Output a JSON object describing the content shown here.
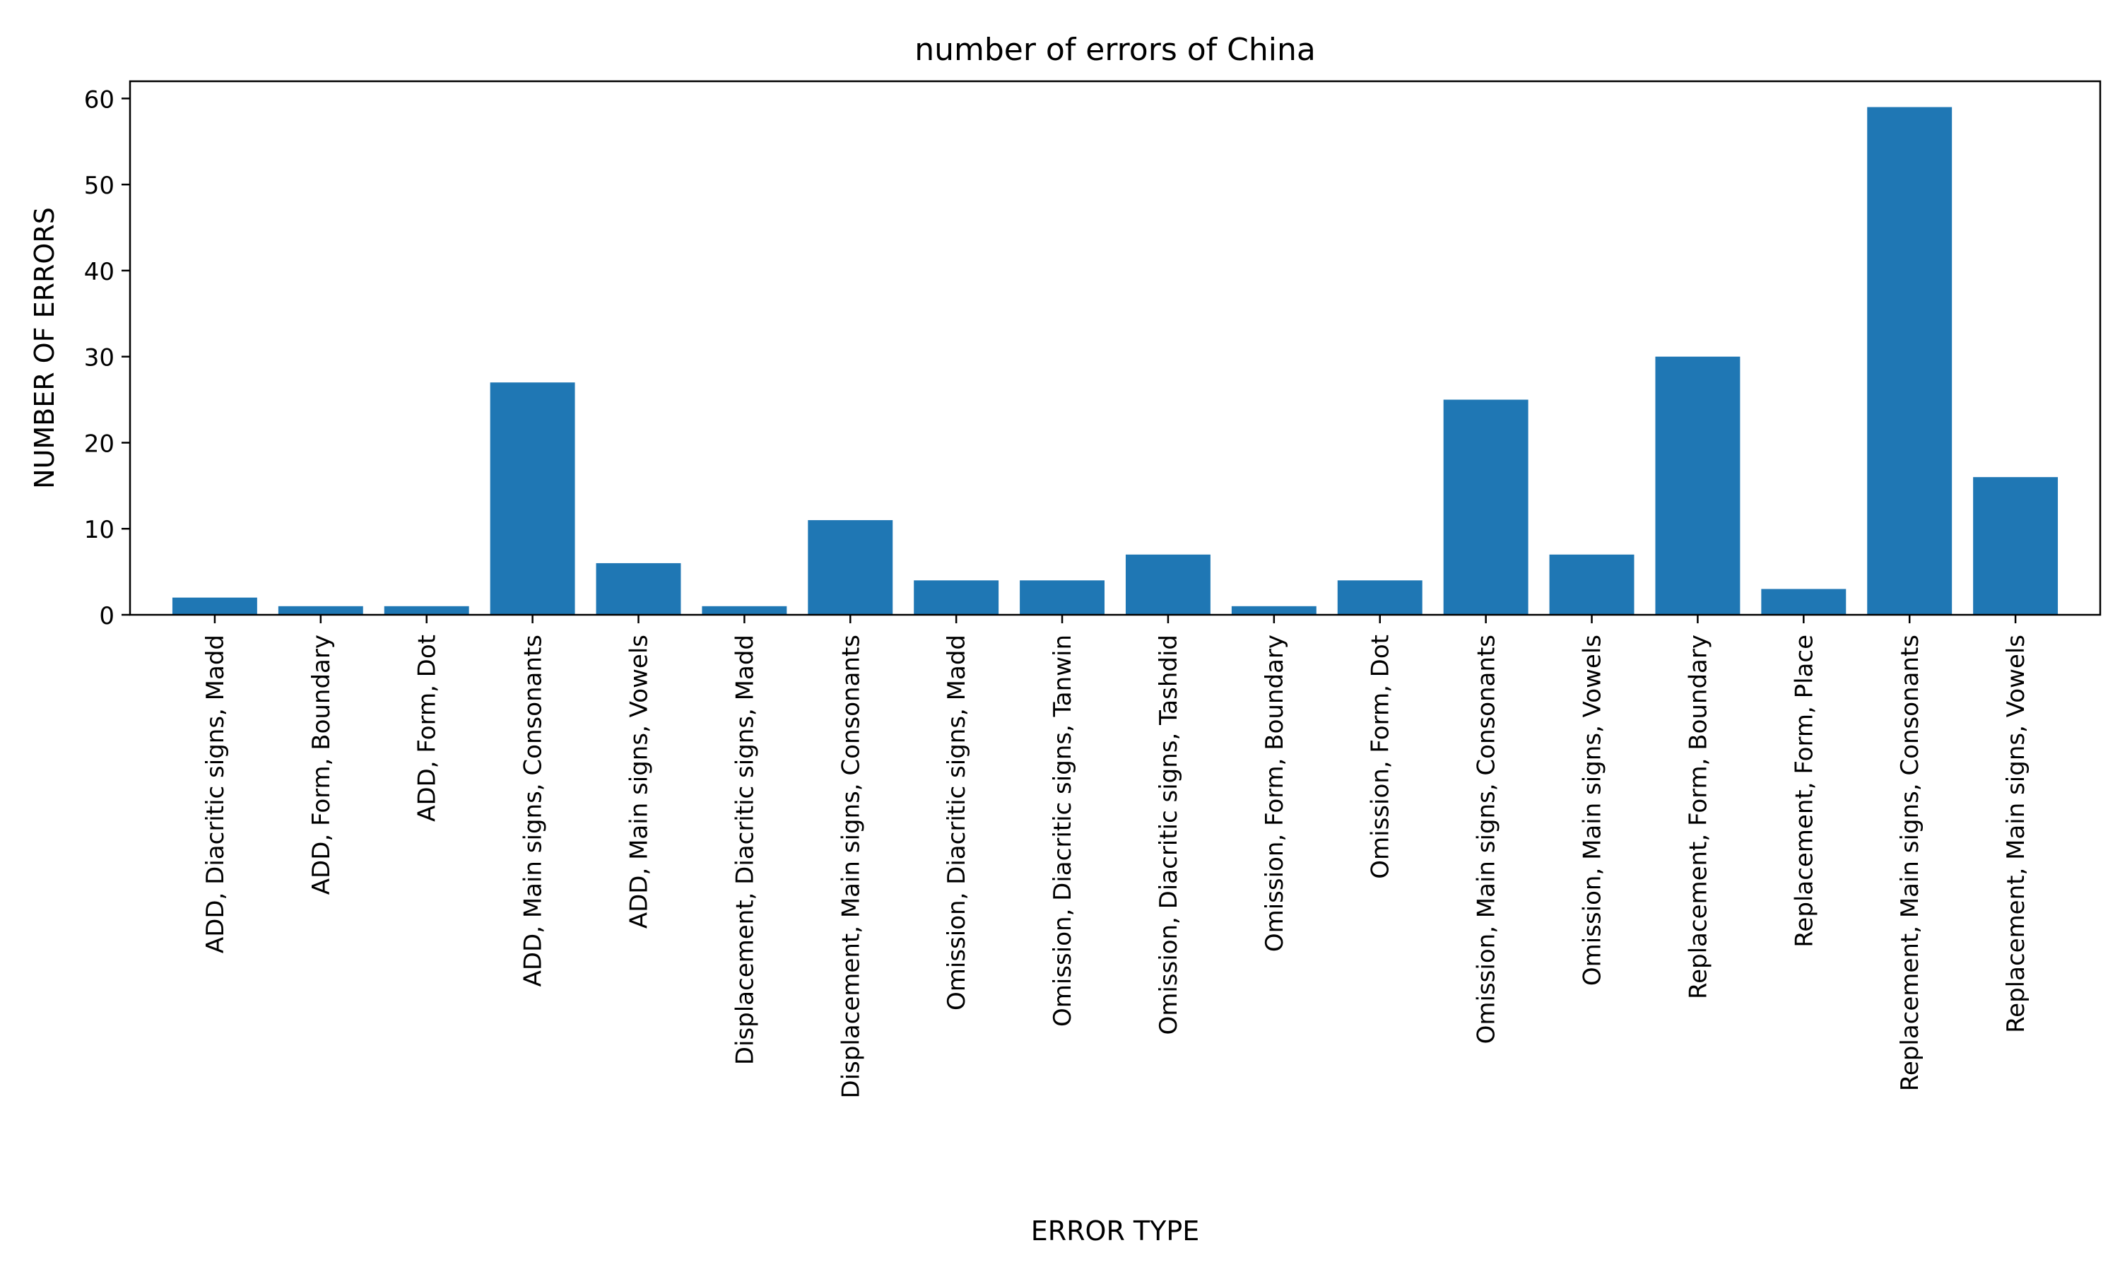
{
  "chart_data": {
    "type": "bar",
    "title": "number of errors of China",
    "xlabel": "ERROR TYPE",
    "ylabel": "NUMBER OF ERRORS",
    "ylim": [
      0,
      62
    ],
    "yticks": [
      0,
      10,
      20,
      30,
      40,
      50,
      60
    ],
    "grid": false,
    "legend": "none",
    "bar_color": "#1f77b4",
    "categories": [
      "ADD, Diacritic signs, Madd",
      "ADD, Form, Boundary",
      "ADD, Form, Dot",
      "ADD, Main signs, Consonants",
      "ADD, Main signs, Vowels",
      "Displacement, Diacritic signs, Madd",
      "Displacement, Main signs, Consonants",
      "Omission, Diacritic signs, Madd",
      "Omission, Diacritic signs, Tanwin",
      "Omission, Diacritic signs, Tashdid",
      "Omission, Form, Boundary",
      "Omission, Form, Dot",
      "Omission, Main signs, Consonants",
      "Omission, Main signs, Vowels",
      "Replacement, Form, Boundary",
      "Replacement, Form, Place",
      "Replacement, Main signs, Consonants",
      "Replacement, Main signs, Vowels"
    ],
    "values": [
      2,
      1,
      1,
      27,
      6,
      1,
      11,
      4,
      4,
      7,
      1,
      4,
      25,
      7,
      30,
      3,
      59,
      16
    ]
  }
}
